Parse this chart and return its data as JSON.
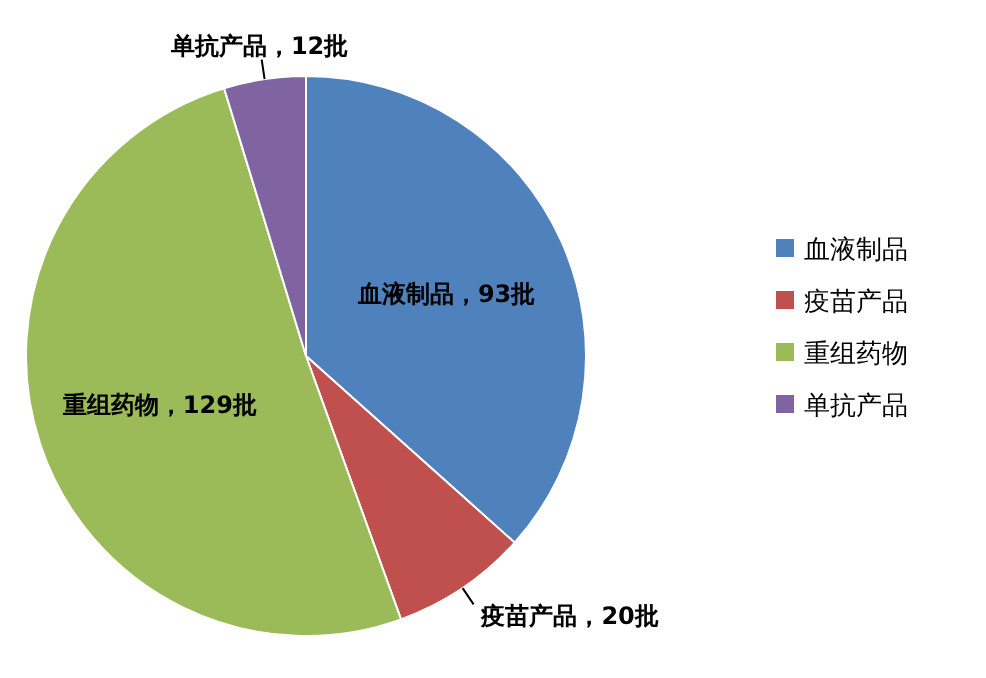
{
  "chart_data": {
    "type": "pie",
    "categories": [
      "血液制品",
      "疫苗产品",
      "重组药物",
      "单抗产品"
    ],
    "values": [
      93,
      20,
      129,
      12
    ],
    "colors": [
      "#4f81bd",
      "#c0504d",
      "#9bbb59",
      "#8064a2"
    ],
    "value_labels": [
      "血液制品，93批",
      "疫苗产品，20批",
      "重组药物，129批",
      "单抗产品，12批"
    ],
    "legend": "right"
  }
}
